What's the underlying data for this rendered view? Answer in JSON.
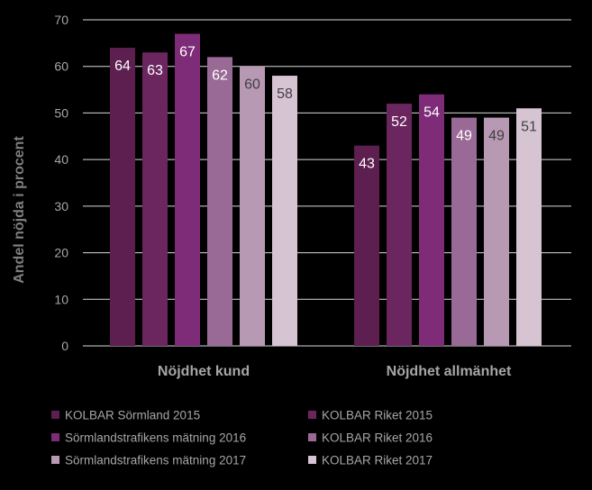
{
  "chart_data": {
    "type": "bar",
    "title": "",
    "xlabel": "",
    "ylabel": "Andel nöjda i procent",
    "ylim": [
      0,
      70
    ],
    "yticks": [
      0,
      10,
      20,
      30,
      40,
      50,
      60,
      70
    ],
    "grid": true,
    "legend_position": "bottom",
    "categories": [
      "Nöjdhet kund",
      "Nöjdhet allmänhet"
    ],
    "series": [
      {
        "name": "KOLBAR Sörmland 2015",
        "color": "#5c1f4f",
        "values": [
          64,
          43
        ]
      },
      {
        "name": "KOLBAR Riket 2015",
        "color": "#6b2660",
        "values": [
          63,
          52
        ]
      },
      {
        "name": "Sörmlandstrafikens mätning 2016",
        "color": "#7e2c77",
        "values": [
          67,
          54
        ]
      },
      {
        "name": "KOLBAR Riket 2016",
        "color": "#9a6a96",
        "values": [
          62,
          49
        ]
      },
      {
        "name": "Sörmlandstrafikens mätning 2017",
        "color": "#b899b4",
        "values": [
          60,
          49
        ]
      },
      {
        "name": "KOLBAR Riket 2017",
        "color": "#d6c4d3",
        "values": [
          58,
          51
        ]
      }
    ]
  },
  "colors": {
    "background": "#000000",
    "axis_text": "#a6a6a6",
    "grid": "#d9d9d9",
    "label_light": "#ffffff",
    "label_dark": "#404040"
  }
}
